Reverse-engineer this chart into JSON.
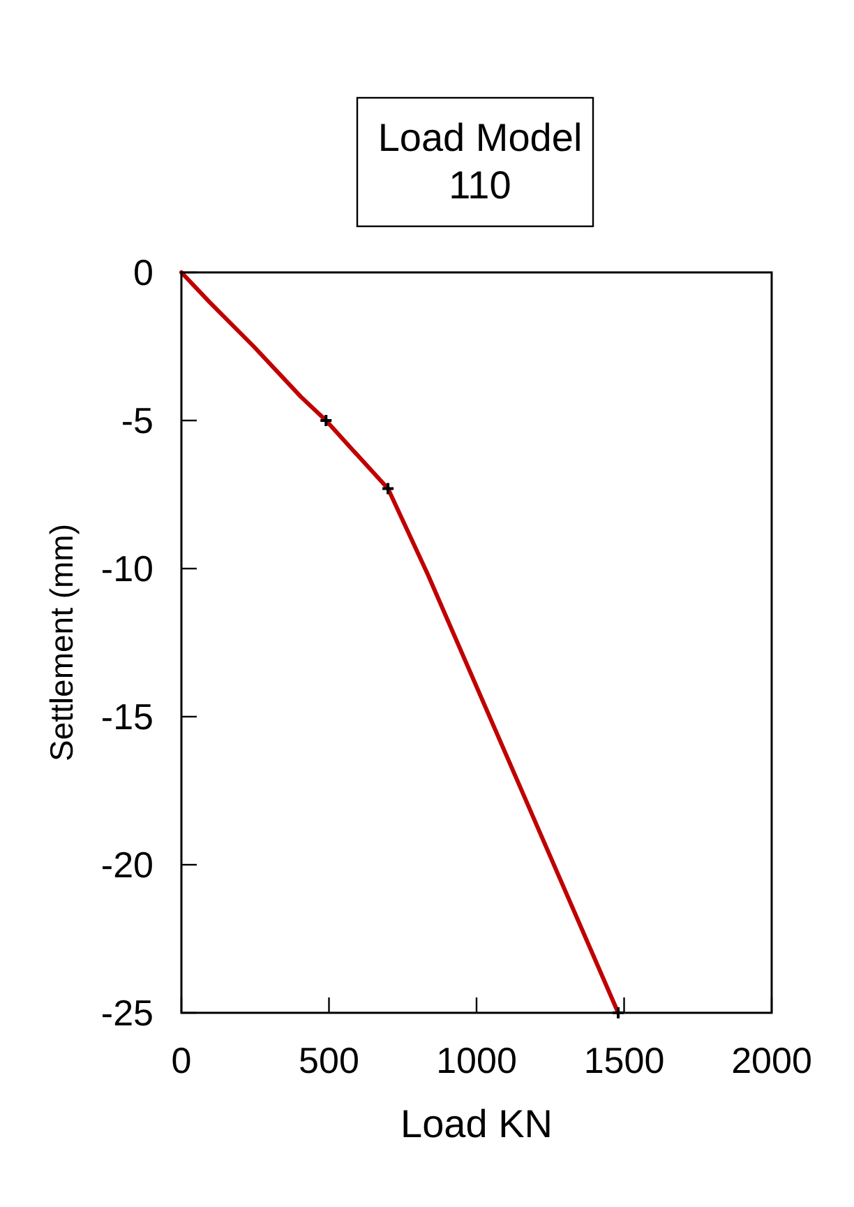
{
  "chart_data": {
    "type": "line",
    "title": "Load Model\n110",
    "xlabel": "Load KN",
    "ylabel": "Settlement (mm)",
    "x": [
      0,
      95,
      245,
      405,
      490,
      590,
      700,
      835,
      1480
    ],
    "series": [
      {
        "color": "#c00000",
        "values": [
          0,
          -1,
          -2.5,
          -4.2,
          -5,
          -6.1,
          -7.3,
          -10.2,
          -25
        ]
      },
      {
        "type": "scatter",
        "color": "#000000",
        "marker": "cross",
        "x": [
          490,
          700,
          1480
        ],
        "values": [
          -5,
          -7.3,
          -25
        ]
      }
    ],
    "xlim": [
      0,
      2000
    ],
    "xticks": [
      0,
      500,
      1000,
      1500,
      2000
    ],
    "ylim": [
      -25,
      0
    ],
    "yticks": [
      0,
      -5,
      -10,
      -15,
      -20,
      -25
    ]
  }
}
